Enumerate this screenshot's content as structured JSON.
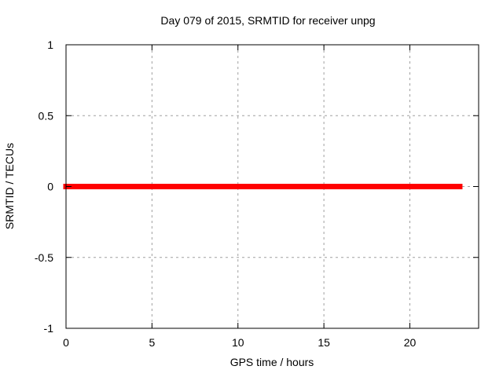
{
  "chart_data": {
    "type": "line",
    "title": "Day 079 of 2015, SRMTID for receiver unpg",
    "xlabel": "GPS time / hours",
    "ylabel": "SRMTID / TECUs",
    "xlim": [
      0,
      24
    ],
    "ylim": [
      -1,
      1
    ],
    "xticks": [
      0,
      5,
      10,
      15,
      20
    ],
    "xtick_labels": [
      "0",
      "5",
      "10",
      "15",
      "20"
    ],
    "yticks": [
      -1,
      -0.5,
      0,
      0.5,
      1
    ],
    "ytick_labels": [
      "-1",
      "-0.5",
      "0",
      "0.5",
      "1"
    ],
    "grid": true,
    "legend": "none",
    "series": [
      {
        "name": "SRMTID",
        "x": [
          0,
          22.9
        ],
        "y": [
          0,
          0
        ],
        "color": "#ff0000",
        "linewidth": 7
      }
    ]
  },
  "colors": {
    "background": "#ffffff",
    "axis": "#000000",
    "grid": "#a0a0a0",
    "text": "#000000",
    "series": "#ff0000"
  }
}
